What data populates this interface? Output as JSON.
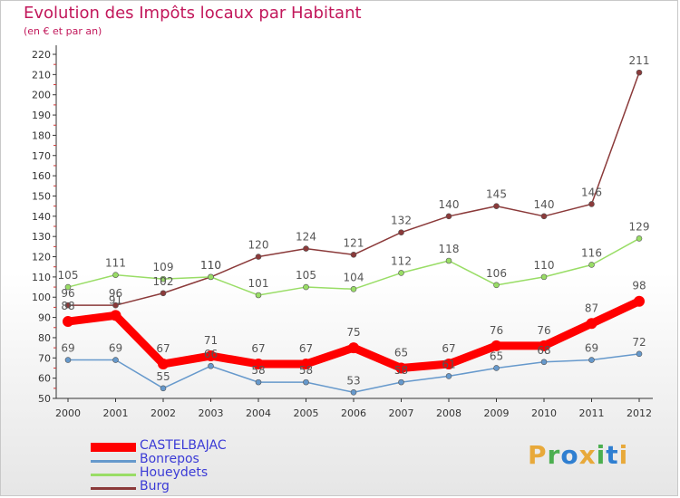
{
  "header": {
    "title": "Evolution des Impôts locaux par Habitant",
    "subtitle": "(en € et par an)"
  },
  "logo": {
    "text": "Proxiti",
    "letters": [
      "P",
      "r",
      "o",
      "x",
      "i",
      "t",
      "i"
    ],
    "colors": [
      "#e8a93a",
      "#4caf50",
      "#2f7fd1",
      "#e8a93a",
      "#4caf50",
      "#2f7fd1",
      "#e8a93a"
    ]
  },
  "chart_data": {
    "type": "line",
    "title": "Evolution des Impôts locaux par Habitant",
    "subtitle": "(en € et par an)",
    "xlabel": "",
    "ylabel": "",
    "x": [
      "2000",
      "2001",
      "2002",
      "2003",
      "2004",
      "2005",
      "2006",
      "2007",
      "2008",
      "2009",
      "2010",
      "2011",
      "2012"
    ],
    "ylim": [
      50,
      220
    ],
    "yticks": [
      50,
      60,
      70,
      80,
      90,
      100,
      110,
      120,
      130,
      140,
      150,
      160,
      170,
      180,
      190,
      200,
      210,
      220
    ],
    "grid": false,
    "legend_position": "bottom-left",
    "series": [
      {
        "name": "CASTELBAJAC",
        "color": "#ff0000",
        "values": [
          88,
          91,
          67,
          71,
          67,
          67,
          75,
          65,
          67,
          76,
          76,
          87,
          98
        ]
      },
      {
        "name": "Bonrepos",
        "color": "#6699cc",
        "values": [
          69,
          69,
          55,
          66,
          58,
          58,
          53,
          58,
          61,
          65,
          68,
          69,
          72
        ]
      },
      {
        "name": "Houeydets",
        "color": "#99dd66",
        "values": [
          105,
          111,
          109,
          110,
          101,
          105,
          104,
          112,
          118,
          106,
          110,
          116,
          129
        ]
      },
      {
        "name": "Burg",
        "color": "#8b3a3a",
        "values": [
          96,
          96,
          102,
          110,
          120,
          124,
          121,
          132,
          140,
          145,
          140,
          146,
          211
        ]
      }
    ]
  }
}
